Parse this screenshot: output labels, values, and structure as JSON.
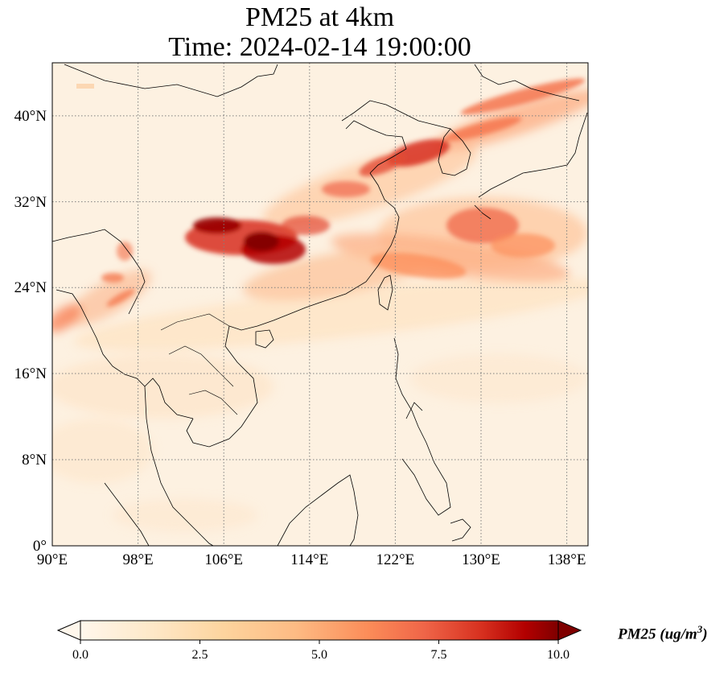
{
  "title": {
    "line1": "PM25 at 4km",
    "line2": "Time: 2024-02-14 19:00:00"
  },
  "map": {
    "variable": "PM25",
    "level": "4km",
    "time": "2024-02-14 19:00:00",
    "extent": {
      "lon": [
        90,
        140
      ],
      "lat": [
        0,
        44
      ]
    },
    "lon_ticks": [
      "90°E",
      "98°E",
      "106°E",
      "114°E",
      "122°E",
      "130°E",
      "138°E"
    ],
    "lat_ticks": [
      "0°",
      "8°N",
      "16°N",
      "24°N",
      "32°N",
      "40°N"
    ],
    "gridlines": true,
    "colormap": "OrRd",
    "colors": {
      "low": "#fff7ec",
      "mid": "#fdbb84",
      "high": "#e34a33",
      "max": "#7f0000",
      "coast": "#000000",
      "grid": "#808080"
    }
  },
  "colorbar": {
    "ticks": [
      "0.0",
      "2.5",
      "5.0",
      "7.5",
      "10.0"
    ],
    "label": "PM25 (ug/m",
    "label_sup": "3",
    "label_close": ")",
    "range": [
      0,
      10
    ],
    "extend": "both"
  }
}
